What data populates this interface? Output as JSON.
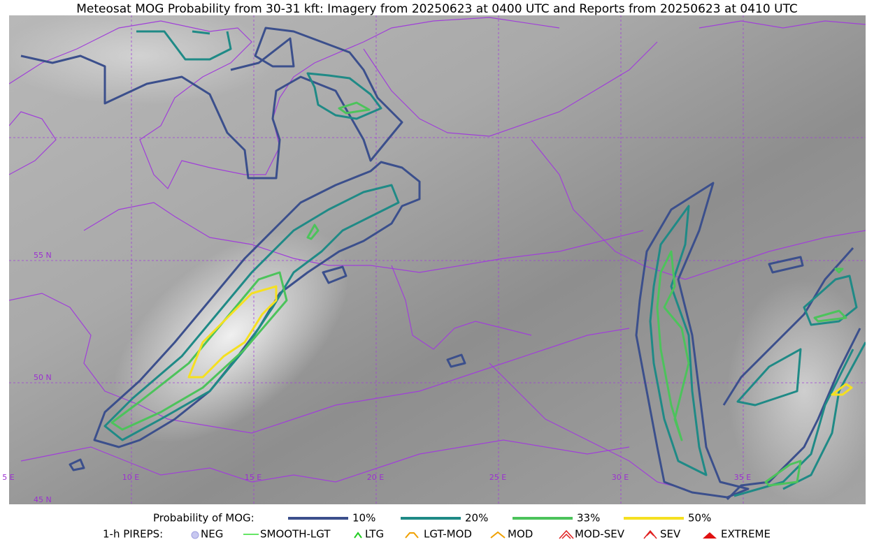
{
  "title": "Meteosat MOG Probability from 30-31 kft: Imagery from 20250623 at 0400 UTC and Reports from 20250623 at 0410 UTC",
  "grid_labels": {
    "lat": [
      "55 N",
      "50 N",
      "45 N"
    ],
    "lon": [
      "5 E",
      "10 E",
      "15 E",
      "20 E",
      "25 E",
      "30 E",
      "35 E"
    ]
  },
  "legend": {
    "probability": {
      "label": "Probability of MOG:",
      "items": [
        {
          "label": "10%",
          "color": "#3b4f8c"
        },
        {
          "label": "20%",
          "color": "#1f8a86"
        },
        {
          "label": "33%",
          "color": "#4cc35b"
        },
        {
          "label": "50%",
          "color": "#f5e020"
        }
      ]
    },
    "pireps": {
      "label": "1-h PIREPS:",
      "items": [
        "NEG",
        "SMOOTH-LGT",
        "LTG",
        "LGT-MOD",
        "MOD",
        "MOD-SEV",
        "SEV",
        "EXTREME"
      ]
    }
  }
}
